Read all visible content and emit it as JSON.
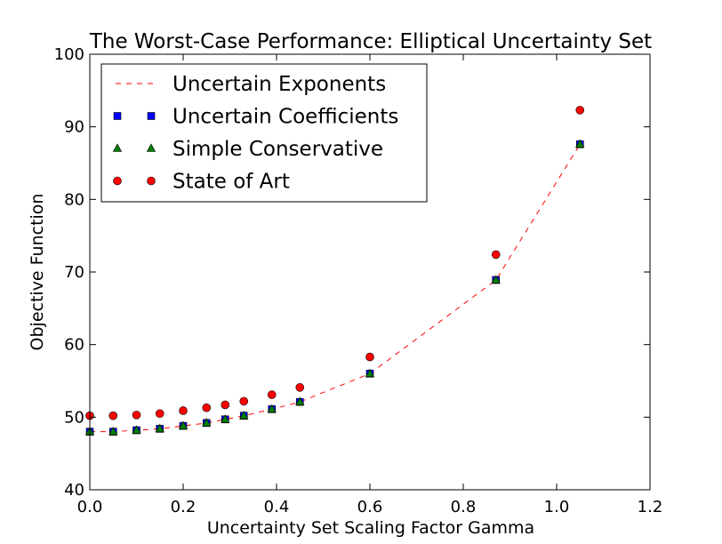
{
  "chart_data": {
    "type": "scatter",
    "title": "The Worst-Case Performance: Elliptical Uncertainty Set",
    "xlabel": "Uncertainty Set Scaling Factor Gamma",
    "ylabel": "Objective Function",
    "xlim": [
      0.0,
      1.2
    ],
    "ylim": [
      40,
      100
    ],
    "xticks": [
      0.0,
      0.2,
      0.4,
      0.6,
      0.8,
      1.0,
      1.2
    ],
    "xtick_labels": [
      "0.0",
      "0.2",
      "0.4",
      "0.6",
      "0.8",
      "1.0",
      "1.2"
    ],
    "yticks": [
      40,
      50,
      60,
      70,
      80,
      90,
      100
    ],
    "ytick_labels": [
      "40",
      "50",
      "60",
      "70",
      "80",
      "90",
      "100"
    ],
    "grid": false,
    "legend_position": "top-left",
    "x": [
      0.0,
      0.05,
      0.1,
      0.15,
      0.2,
      0.25,
      0.29,
      0.33,
      0.39,
      0.45,
      0.6,
      0.87,
      1.05
    ],
    "series": [
      {
        "name": "Uncertain Exponents",
        "style": "dashed-line",
        "color": "#ff0000",
        "values": [
          48.0,
          48.0,
          48.2,
          48.4,
          48.8,
          49.2,
          49.7,
          50.2,
          51.1,
          52.1,
          56.0,
          68.9,
          87.6
        ]
      },
      {
        "name": "Uncertain Coefficients",
        "style": "square",
        "color": "#0000ff",
        "values": [
          48.0,
          48.0,
          48.2,
          48.4,
          48.8,
          49.2,
          49.7,
          50.2,
          51.1,
          52.1,
          56.0,
          68.9,
          87.6
        ]
      },
      {
        "name": "Simple Conservative",
        "style": "triangle",
        "color": "#007f00",
        "values": [
          48.0,
          48.0,
          48.2,
          48.4,
          48.8,
          49.2,
          49.7,
          50.2,
          51.1,
          52.1,
          56.0,
          68.9,
          87.6
        ]
      },
      {
        "name": "State of Art",
        "style": "circle",
        "color": "#ff0000",
        "values": [
          50.2,
          50.2,
          50.3,
          50.5,
          50.9,
          51.3,
          51.7,
          52.2,
          53.1,
          54.1,
          58.3,
          72.4,
          92.3
        ]
      }
    ]
  }
}
